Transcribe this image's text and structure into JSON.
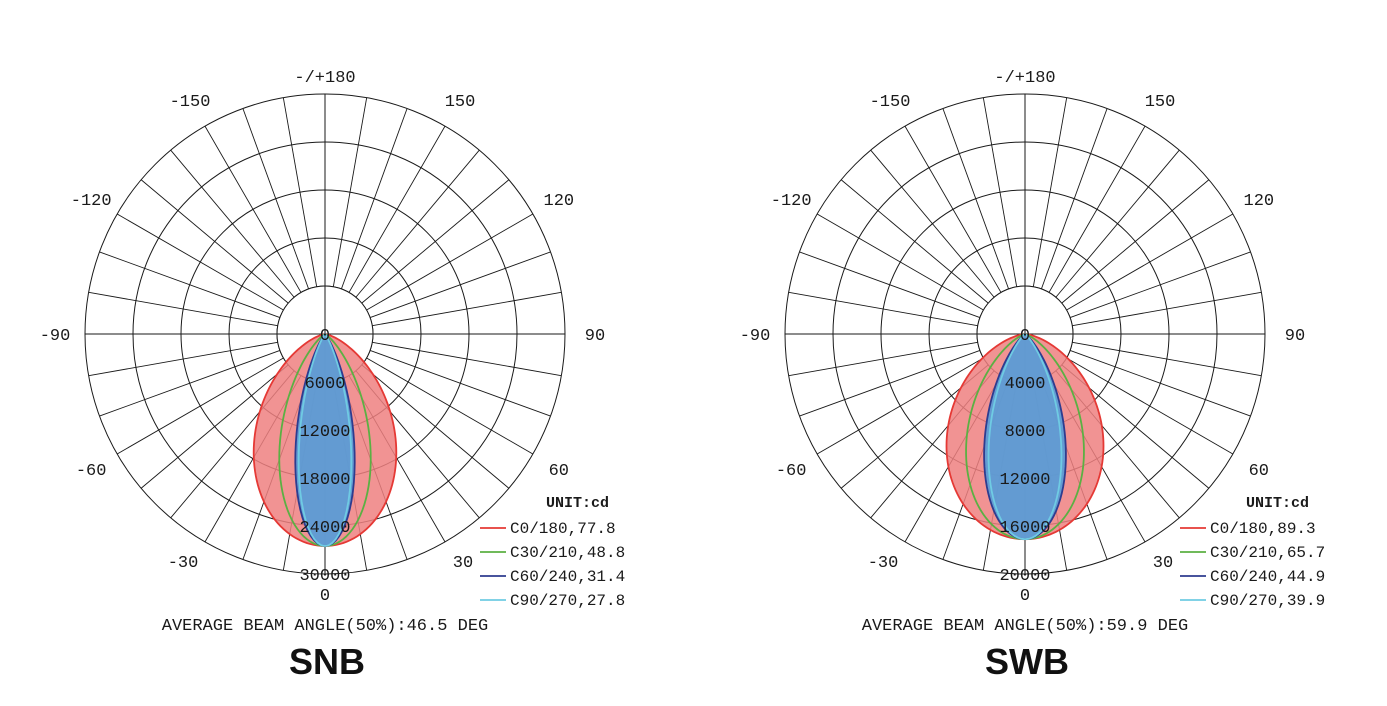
{
  "chart_data": [
    {
      "type": "polar",
      "name": "SNB",
      "unit_label": "UNIT:cd",
      "beam_angle_text": "AVERAGE BEAM ANGLE(50%):46.5 DEG",
      "angle_labels": [
        "-/+180",
        "150",
        "120",
        "90",
        "60",
        "30",
        "0",
        "-30",
        "-60",
        "-90",
        "-120",
        "-150"
      ],
      "radial_ticks": [
        0,
        6000,
        12000,
        18000,
        24000,
        30000
      ],
      "rmax": 30000,
      "series": [
        {
          "name": "C0/180,77.8",
          "color": "#e53935",
          "fill": "#ef8080",
          "peak": 26500,
          "half_beam_deg": 38.9
        },
        {
          "name": "C30/210,48.8",
          "color": "#5bb043",
          "fill": null,
          "peak": 26500,
          "half_beam_deg": 24.4
        },
        {
          "name": "C60/240,31.4",
          "color": "#2e3c8f",
          "fill": "#5b9bd5",
          "peak": 26500,
          "half_beam_deg": 15.7
        },
        {
          "name": "C90/270,27.8",
          "color": "#6fcbe3",
          "fill": null,
          "peak": 26500,
          "half_beam_deg": 13.9
        }
      ]
    },
    {
      "type": "polar",
      "name": "SWB",
      "unit_label": "UNIT:cd",
      "beam_angle_text": "AVERAGE BEAM ANGLE(50%):59.9 DEG",
      "angle_labels": [
        "-/+180",
        "150",
        "120",
        "90",
        "60",
        "30",
        "0",
        "-30",
        "-60",
        "-90",
        "-120",
        "-150"
      ],
      "radial_ticks": [
        0,
        4000,
        8000,
        12000,
        16000,
        20000
      ],
      "rmax": 20000,
      "series": [
        {
          "name": "C0/180,89.3",
          "color": "#e53935",
          "fill": "#ef8080",
          "peak": 17100,
          "half_beam_deg": 44.7
        },
        {
          "name": "C30/210,65.7",
          "color": "#5bb043",
          "fill": null,
          "peak": 17100,
          "half_beam_deg": 32.9
        },
        {
          "name": "C60/240,44.9",
          "color": "#2e3c8f",
          "fill": "#5b9bd5",
          "peak": 17100,
          "half_beam_deg": 22.5
        },
        {
          "name": "C90/270,39.9",
          "color": "#6fcbe3",
          "fill": null,
          "peak": 17100,
          "half_beam_deg": 20.0
        }
      ]
    }
  ]
}
